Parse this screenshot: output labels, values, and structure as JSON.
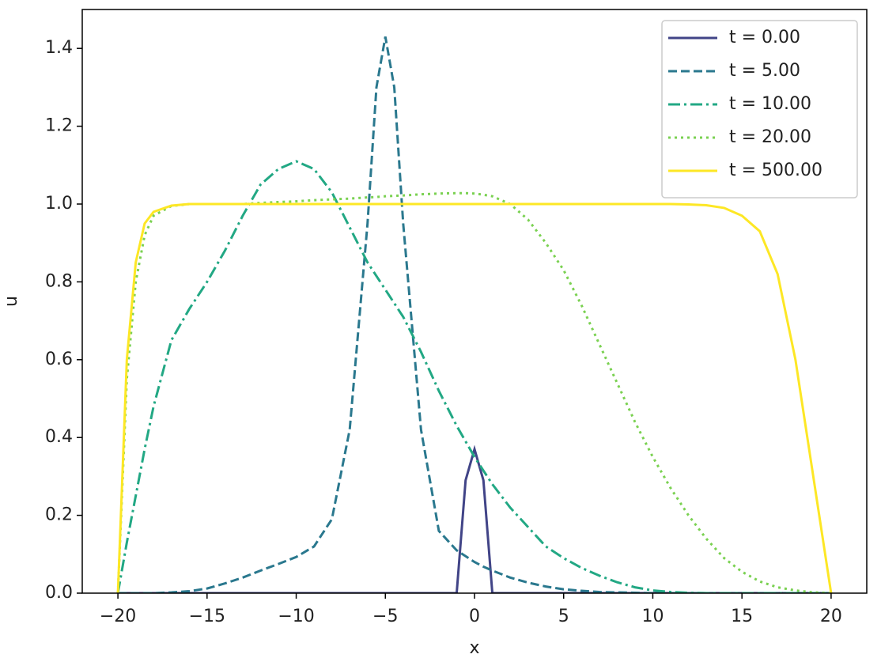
{
  "chart_data": {
    "type": "line",
    "xlabel": "x",
    "ylabel": "u",
    "x": [
      -20,
      -19.5,
      -19,
      -18.5,
      -18,
      -17,
      -16,
      -15,
      -14,
      -13,
      -12,
      -11,
      -10,
      -9,
      -8,
      -7,
      -6,
      -5.5,
      -5,
      -4.5,
      -4,
      -3,
      -2,
      -1,
      -0.5,
      0,
      0.5,
      1,
      2,
      3,
      4,
      5,
      6,
      7,
      8,
      9,
      10,
      11,
      12,
      13,
      14,
      15,
      16,
      17,
      18,
      19,
      19.5,
      20
    ],
    "series": [
      {
        "name": "t = 0.00",
        "color": "#414487",
        "linestyle": "solid",
        "values": [
          0,
          0,
          0,
          0,
          0,
          0,
          0,
          0,
          0,
          0,
          0,
          0,
          0,
          0,
          0,
          0,
          0,
          0,
          0,
          0,
          0,
          0,
          0,
          0,
          0.29,
          0.37,
          0.29,
          0,
          0,
          0,
          0,
          0,
          0,
          0,
          0,
          0,
          0,
          0,
          0,
          0,
          0,
          0,
          0,
          0,
          0,
          0,
          0,
          0
        ]
      },
      {
        "name": "t = 5.00",
        "color": "#2a788e",
        "linestyle": "dashed",
        "values": [
          0,
          0,
          0,
          0,
          0,
          0.002,
          0.005,
          0.012,
          0.025,
          0.04,
          0.058,
          0.075,
          0.093,
          0.12,
          0.19,
          0.42,
          0.95,
          1.3,
          1.43,
          1.3,
          0.95,
          0.42,
          0.16,
          0.11,
          0.095,
          0.08,
          0.068,
          0.058,
          0.04,
          0.027,
          0.017,
          0.01,
          0.006,
          0.003,
          0.002,
          0.001,
          0,
          0,
          0,
          0,
          0,
          0,
          0,
          0,
          0,
          0,
          0,
          0
        ]
      },
      {
        "name": "t = 10.00",
        "color": "#22a884",
        "linestyle": "dashdot",
        "values": [
          0,
          0.13,
          0.25,
          0.37,
          0.48,
          0.65,
          0.73,
          0.8,
          0.88,
          0.97,
          1.05,
          1.09,
          1.11,
          1.09,
          1.03,
          0.94,
          0.85,
          0.815,
          0.78,
          0.745,
          0.71,
          0.62,
          0.52,
          0.43,
          0.39,
          0.35,
          0.315,
          0.28,
          0.22,
          0.17,
          0.12,
          0.09,
          0.065,
          0.045,
          0.028,
          0.015,
          0.007,
          0.003,
          0.001,
          0,
          0,
          0,
          0,
          0,
          0,
          0,
          0,
          0
        ]
      },
      {
        "name": "t = 20.00",
        "color": "#7ad151",
        "linestyle": "dotted",
        "values": [
          0,
          0.55,
          0.8,
          0.92,
          0.97,
          0.995,
          1.0,
          1.0,
          1.0,
          1.0,
          1.003,
          1.005,
          1.007,
          1.01,
          1.012,
          1.014,
          1.017,
          1.018,
          1.02,
          1.021,
          1.022,
          1.025,
          1.027,
          1.028,
          1.028,
          1.027,
          1.024,
          1.02,
          1.0,
          0.96,
          0.9,
          0.83,
          0.74,
          0.64,
          0.54,
          0.44,
          0.35,
          0.27,
          0.2,
          0.14,
          0.09,
          0.055,
          0.03,
          0.015,
          0.007,
          0.002,
          0.001,
          0
        ]
      },
      {
        "name": "t = 500.00",
        "color": "#fde725",
        "linestyle": "solid",
        "values": [
          0,
          0.6,
          0.85,
          0.95,
          0.98,
          0.996,
          1.0,
          1.0,
          1.0,
          1.0,
          1.0,
          1.0,
          1.0,
          1.0,
          1.0,
          1.0,
          1.0,
          1.0,
          1.0,
          1.0,
          1.0,
          1.0,
          1.0,
          1.0,
          1.0,
          1.0,
          1.0,
          1.0,
          1.0,
          1.0,
          1.0,
          1.0,
          1.0,
          1.0,
          1.0,
          1.0,
          1.0,
          1.0,
          0.999,
          0.997,
          0.99,
          0.97,
          0.93,
          0.82,
          0.6,
          0.3,
          0.15,
          0
        ]
      }
    ],
    "xlim": [
      -22,
      22
    ],
    "xticks": [
      {
        "value": -20,
        "label": "−20"
      },
      {
        "value": -15,
        "label": "−15"
      },
      {
        "value": -10,
        "label": "−10"
      },
      {
        "value": -5,
        "label": "−5"
      },
      0,
      5,
      10,
      15,
      20
    ],
    "ylim": [
      0,
      1.5
    ],
    "yticks": [
      {
        "value": 0,
        "label": "0.0"
      },
      0.2,
      0.4,
      0.6,
      0.8,
      {
        "value": 1,
        "label": "1.0"
      },
      1.2,
      1.4
    ],
    "legend": "upper right"
  }
}
